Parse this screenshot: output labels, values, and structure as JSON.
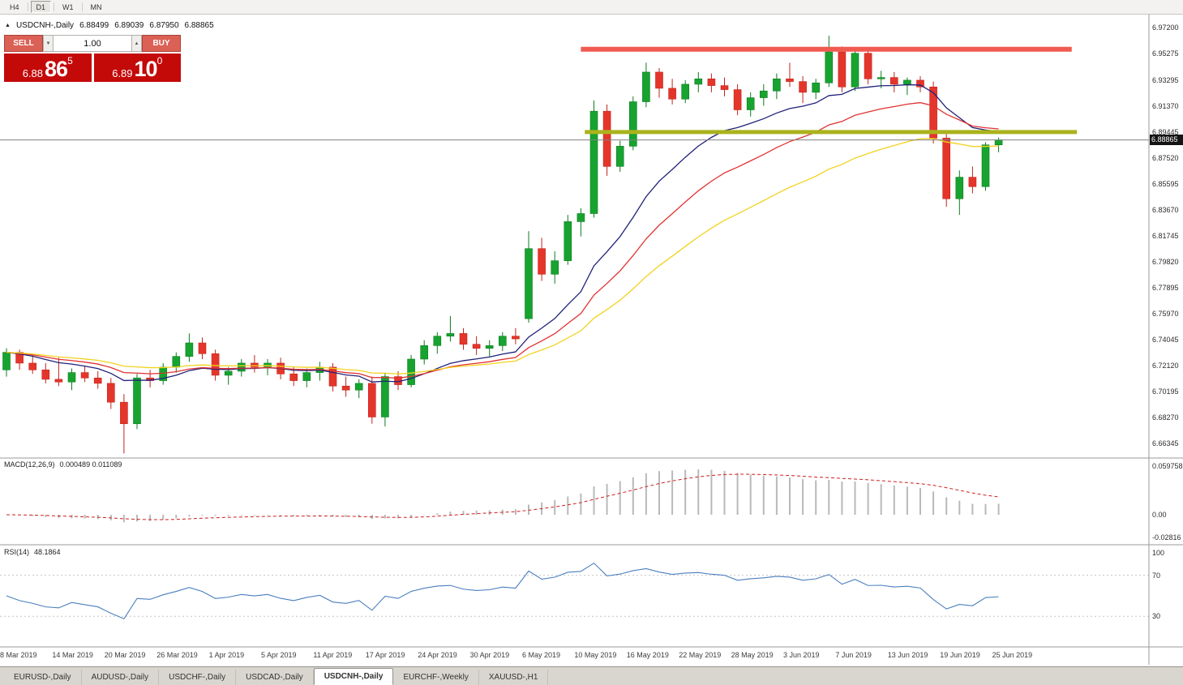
{
  "toolbar": {
    "timeframes": [
      "H4",
      "D1",
      "W1",
      "MN"
    ],
    "active": "D1"
  },
  "header": {
    "collapse_icon": "▲",
    "symbol_period": "USDCNH-,Daily",
    "open": "6.88499",
    "high": "6.89039",
    "low": "6.87950",
    "close": "6.88865"
  },
  "trade_panel": {
    "sell_label": "SELL",
    "buy_label": "BUY",
    "volume": "1.00",
    "spinner_down_icon": "▼",
    "spinner_up_icon": "▲",
    "sell_price": {
      "base": "6.88",
      "big": "86",
      "sup": "5"
    },
    "buy_price": {
      "base": "6.89",
      "big": "10",
      "sup": "0"
    }
  },
  "indicators": {
    "macd_title": "MACD(12,26,9)",
    "macd_values": "0.000489 0.011089",
    "rsi_title": "RSI(14)",
    "rsi_value": "48.1864"
  },
  "price_tag": "6.88865",
  "axes": {
    "price_labels": [
      "6.97200",
      "6.95275",
      "6.93295",
      "6.91370",
      "6.89445",
      "6.87520",
      "6.85595",
      "6.83670",
      "6.81745",
      "6.79820",
      "6.77895",
      "6.75970",
      "6.74045",
      "6.72120",
      "6.70195",
      "6.68270",
      "6.66345"
    ],
    "macd_labels": [
      "0.059758",
      "0.00",
      "-0.02816"
    ],
    "rsi_labels": [
      "100",
      "70",
      "30"
    ],
    "dates": [
      {
        "t": "8 Mar 2019",
        "bar": 0
      },
      {
        "t": "14 Mar 2019",
        "bar": 4
      },
      {
        "t": "20 Mar 2019",
        "bar": 8
      },
      {
        "t": "26 Mar 2019",
        "bar": 12
      },
      {
        "t": "1 Apr 2019",
        "bar": 16
      },
      {
        "t": "5 Apr 2019",
        "bar": 20
      },
      {
        "t": "11 Apr 2019",
        "bar": 24
      },
      {
        "t": "17 Apr 2019",
        "bar": 28
      },
      {
        "t": "24 Apr 2019",
        "bar": 32
      },
      {
        "t": "30 Apr 2019",
        "bar": 36
      },
      {
        "t": "6 May 2019",
        "bar": 40
      },
      {
        "t": "10 May 2019",
        "bar": 44
      },
      {
        "t": "16 May 2019",
        "bar": 48
      },
      {
        "t": "22 May 2019",
        "bar": 52
      },
      {
        "t": "28 May 2019",
        "bar": 56
      },
      {
        "t": "3 Jun 2019",
        "bar": 60
      },
      {
        "t": "7 Jun 2019",
        "bar": 64
      },
      {
        "t": "13 Jun 2019",
        "bar": 68
      },
      {
        "t": "19 Jun 2019",
        "bar": 72
      },
      {
        "t": "25 Jun 2019",
        "bar": 76
      }
    ]
  },
  "tabs": {
    "items": [
      {
        "label": "EURUSD-,Daily",
        "active": false
      },
      {
        "label": "AUDUSD-,Daily",
        "active": false
      },
      {
        "label": "USDCHF-,Daily",
        "active": false
      },
      {
        "label": "USDCAD-,Daily",
        "active": false
      },
      {
        "label": "USDCNH-,Daily",
        "active": true
      },
      {
        "label": "EURCHF-,Weekly",
        "active": false
      },
      {
        "label": "XAUUSD-,H1",
        "active": false
      }
    ]
  },
  "chart_data": {
    "type": "candlestick",
    "title": "USDCNH-,Daily",
    "ylim": [
      6.66345,
      6.972
    ],
    "current_price": 6.88865,
    "candle_format": [
      "date",
      "open",
      "high",
      "low",
      "close"
    ],
    "candles": [
      [
        "2019-03-08",
        6.718,
        6.734,
        6.713,
        6.731
      ],
      [
        "2019-03-11",
        6.731,
        6.733,
        6.718,
        6.723
      ],
      [
        "2019-03-12",
        6.723,
        6.729,
        6.715,
        6.718
      ],
      [
        "2019-03-13",
        6.718,
        6.723,
        6.708,
        6.711
      ],
      [
        "2019-03-14",
        6.711,
        6.727,
        6.706,
        6.709
      ],
      [
        "2019-03-15",
        6.709,
        6.719,
        6.703,
        6.716
      ],
      [
        "2019-03-18",
        6.716,
        6.721,
        6.709,
        6.712
      ],
      [
        "2019-03-19",
        6.712,
        6.717,
        6.704,
        6.708
      ],
      [
        "2019-03-20",
        6.708,
        6.712,
        6.689,
        6.694
      ],
      [
        "2019-03-21",
        6.694,
        6.7,
        6.656,
        6.678
      ],
      [
        "2019-03-22",
        6.678,
        6.715,
        6.674,
        6.712
      ],
      [
        "2019-03-25",
        6.712,
        6.718,
        6.705,
        6.71
      ],
      [
        "2019-03-26",
        6.71,
        6.723,
        6.707,
        6.72
      ],
      [
        "2019-03-27",
        6.72,
        6.731,
        6.716,
        6.728
      ],
      [
        "2019-03-28",
        6.728,
        6.745,
        6.724,
        6.738
      ],
      [
        "2019-03-29",
        6.738,
        6.742,
        6.726,
        6.73
      ],
      [
        "2019-04-01",
        6.73,
        6.733,
        6.71,
        6.714
      ],
      [
        "2019-04-02",
        6.714,
        6.72,
        6.707,
        6.717
      ],
      [
        "2019-04-03",
        6.717,
        6.726,
        6.713,
        6.723
      ],
      [
        "2019-04-04",
        6.723,
        6.729,
        6.716,
        6.72
      ],
      [
        "2019-04-05",
        6.72,
        6.726,
        6.714,
        6.723
      ],
      [
        "2019-04-08",
        6.723,
        6.727,
        6.711,
        6.715
      ],
      [
        "2019-04-09",
        6.715,
        6.72,
        6.706,
        6.71
      ],
      [
        "2019-04-10",
        6.71,
        6.719,
        6.705,
        6.716
      ],
      [
        "2019-04-11",
        6.716,
        6.724,
        6.71,
        6.72
      ],
      [
        "2019-04-12",
        6.72,
        6.723,
        6.702,
        6.706
      ],
      [
        "2019-04-15",
        6.706,
        6.713,
        6.698,
        6.703
      ],
      [
        "2019-04-16",
        6.703,
        6.711,
        6.697,
        6.708
      ],
      [
        "2019-04-17",
        6.708,
        6.713,
        6.678,
        6.683
      ],
      [
        "2019-04-18",
        6.683,
        6.716,
        6.676,
        6.713
      ],
      [
        "2019-04-22",
        6.713,
        6.717,
        6.703,
        6.707
      ],
      [
        "2019-04-23",
        6.707,
        6.729,
        6.705,
        6.726
      ],
      [
        "2019-04-24",
        6.726,
        6.74,
        6.722,
        6.736
      ],
      [
        "2019-04-25",
        6.736,
        6.746,
        6.73,
        6.743
      ],
      [
        "2019-04-26",
        6.743,
        6.758,
        6.739,
        6.745
      ],
      [
        "2019-04-29",
        6.745,
        6.749,
        6.733,
        6.737
      ],
      [
        "2019-04-30",
        6.737,
        6.743,
        6.729,
        6.734
      ],
      [
        "2019-05-01",
        6.734,
        6.74,
        6.728,
        6.736
      ],
      [
        "2019-05-02",
        6.736,
        6.746,
        6.732,
        6.743
      ],
      [
        "2019-05-03",
        6.743,
        6.749,
        6.737,
        6.741
      ],
      [
        "2019-05-06",
        6.756,
        6.821,
        6.753,
        6.808
      ],
      [
        "2019-05-07",
        6.808,
        6.816,
        6.784,
        6.789
      ],
      [
        "2019-05-08",
        6.789,
        6.806,
        6.782,
        6.799
      ],
      [
        "2019-05-09",
        6.799,
        6.833,
        6.796,
        6.828
      ],
      [
        "2019-05-10",
        6.828,
        6.838,
        6.817,
        6.834
      ],
      [
        "2019-05-13",
        6.834,
        6.918,
        6.831,
        6.91
      ],
      [
        "2019-05-14",
        6.91,
        6.915,
        6.862,
        6.869
      ],
      [
        "2019-05-15",
        6.869,
        6.888,
        6.865,
        6.884
      ],
      [
        "2019-05-16",
        6.884,
        6.921,
        6.881,
        6.917
      ],
      [
        "2019-05-17",
        6.917,
        6.946,
        6.913,
        6.939
      ],
      [
        "2019-05-20",
        6.939,
        6.942,
        6.92,
        6.927
      ],
      [
        "2019-05-21",
        6.927,
        6.934,
        6.915,
        6.919
      ],
      [
        "2019-05-22",
        6.919,
        6.933,
        6.916,
        6.93
      ],
      [
        "2019-05-23",
        6.93,
        6.939,
        6.924,
        6.934
      ],
      [
        "2019-05-24",
        6.934,
        6.938,
        6.924,
        6.929
      ],
      [
        "2019-05-27",
        6.929,
        6.935,
        6.921,
        6.926
      ],
      [
        "2019-05-28",
        6.926,
        6.93,
        6.907,
        6.911
      ],
      [
        "2019-05-29",
        6.911,
        6.924,
        6.906,
        6.92
      ],
      [
        "2019-05-30",
        6.92,
        6.93,
        6.914,
        6.925
      ],
      [
        "2019-05-31",
        6.925,
        6.938,
        6.919,
        6.934
      ],
      [
        "2019-06-03",
        6.934,
        6.946,
        6.928,
        6.932
      ],
      [
        "2019-06-04",
        6.932,
        6.936,
        6.916,
        6.924
      ],
      [
        "2019-06-05",
        6.924,
        6.934,
        6.919,
        6.931
      ],
      [
        "2019-06-06",
        6.931,
        6.966,
        6.928,
        6.954
      ],
      [
        "2019-06-07",
        6.954,
        6.958,
        6.924,
        6.928
      ],
      [
        "2019-06-10",
        6.928,
        6.957,
        6.925,
        6.953
      ],
      [
        "2019-06-11",
        6.953,
        6.955,
        6.93,
        6.934
      ],
      [
        "2019-06-12",
        6.934,
        6.94,
        6.927,
        6.935
      ],
      [
        "2019-06-13",
        6.935,
        6.939,
        6.924,
        6.93
      ],
      [
        "2019-06-14",
        6.93,
        6.935,
        6.922,
        6.933
      ],
      [
        "2019-06-17",
        6.933,
        6.936,
        6.924,
        6.928
      ],
      [
        "2019-06-18",
        6.928,
        6.932,
        6.886,
        6.89
      ],
      [
        "2019-06-19",
        6.89,
        6.893,
        6.839,
        6.845
      ],
      [
        "2019-06-20",
        6.845,
        6.866,
        6.833,
        6.861
      ],
      [
        "2019-06-21",
        6.861,
        6.869,
        6.849,
        6.854
      ],
      [
        "2019-06-24",
        6.854,
        6.887,
        6.851,
        6.885
      ],
      [
        "2019-06-25",
        6.88499,
        6.89039,
        6.8795,
        6.88865
      ]
    ],
    "moving_averages": [
      {
        "name": "fast-ma",
        "period": 13,
        "method": "ema",
        "color": "#20207a"
      },
      {
        "name": "mid-ma",
        "period": 21,
        "method": "ema",
        "color": "#e03232"
      },
      {
        "name": "slow-ma",
        "period": 34,
        "method": "ema",
        "color": "#f2d21f"
      }
    ],
    "horizontal_levels": [
      {
        "name": "resistance",
        "price": 6.956,
        "color": "#f05a50",
        "width": 6,
        "from_bar": 44,
        "to_bar": 81.6
      },
      {
        "name": "support",
        "price": 6.8945,
        "color": "#aab31c",
        "width": 5,
        "from_bar": 44.3,
        "to_bar": 82
      }
    ],
    "macd": {
      "fast": 12,
      "slow": 26,
      "signal": 9,
      "main_value": 0.000489,
      "signal_value": 0.011089
    },
    "rsi": {
      "period": 14,
      "value": 48.1864,
      "levels": [
        70,
        30
      ]
    },
    "colors": {
      "up": "#17a32f",
      "up_stroke": "#0d7c22",
      "down": "#e5352b",
      "down_stroke": "#bf241b",
      "macd_hist": "#b9b9b9",
      "macd_signal": "#cc2020",
      "rsi_line": "#4a7fbe",
      "bid_line": "#808080"
    }
  }
}
